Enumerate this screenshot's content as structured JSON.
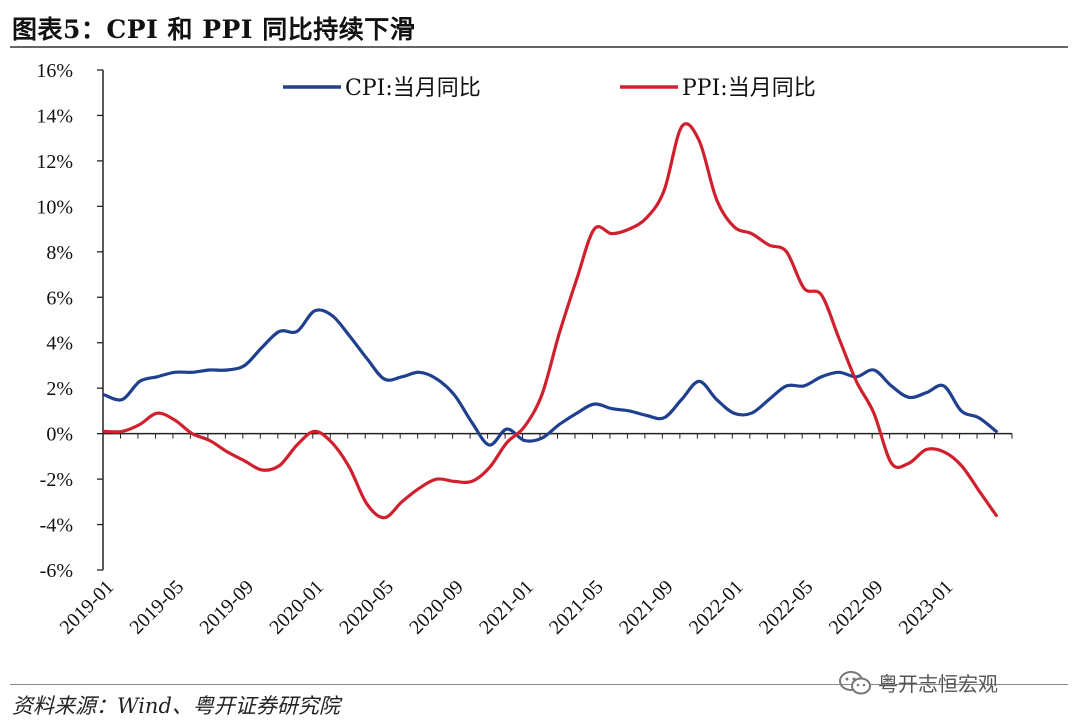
{
  "title": "图表5：CPI 和 PPI 同比持续下滑",
  "source": "资料来源：Wind、粤开证券研究院",
  "watermark": "粤开志恒宏观",
  "chart_data": {
    "type": "line",
    "ylim": [
      -6,
      16
    ],
    "y_ticks": [
      -6,
      -4,
      -2,
      0,
      2,
      4,
      6,
      8,
      10,
      12,
      14,
      16
    ],
    "y_tick_labels": [
      "-6%",
      "-4%",
      "-2%",
      "0%",
      "2%",
      "4%",
      "6%",
      "8%",
      "10%",
      "12%",
      "14%",
      "16%"
    ],
    "x_tick_labels": [
      "2019-01",
      "2019-05",
      "2019-09",
      "2020-01",
      "2020-05",
      "2020-09",
      "2021-01",
      "2021-05",
      "2021-09",
      "2022-01",
      "2022-05",
      "2022-09",
      "2023-01"
    ],
    "x": [
      "2019-01",
      "2019-02",
      "2019-03",
      "2019-04",
      "2019-05",
      "2019-06",
      "2019-07",
      "2019-08",
      "2019-09",
      "2019-10",
      "2019-11",
      "2019-12",
      "2020-01",
      "2020-02",
      "2020-03",
      "2020-04",
      "2020-05",
      "2020-06",
      "2020-07",
      "2020-08",
      "2020-09",
      "2020-10",
      "2020-11",
      "2020-12",
      "2021-01",
      "2021-02",
      "2021-03",
      "2021-04",
      "2021-05",
      "2021-06",
      "2021-07",
      "2021-08",
      "2021-09",
      "2021-10",
      "2021-11",
      "2021-12",
      "2022-01",
      "2022-02",
      "2022-03",
      "2022-04",
      "2022-05",
      "2022-06",
      "2022-07",
      "2022-08",
      "2022-09",
      "2022-10",
      "2022-11",
      "2022-12",
      "2023-01",
      "2023-02",
      "2023-03",
      "2023-04"
    ],
    "legend_position": "top",
    "series": [
      {
        "name": "CPI:当月同比",
        "color": "#1f3f8f",
        "values": [
          1.7,
          1.5,
          2.3,
          2.5,
          2.7,
          2.7,
          2.8,
          2.8,
          3.0,
          3.8,
          4.5,
          4.5,
          5.4,
          5.2,
          4.3,
          3.3,
          2.4,
          2.5,
          2.7,
          2.4,
          1.7,
          0.5,
          -0.5,
          0.2,
          -0.3,
          -0.2,
          0.4,
          0.9,
          1.3,
          1.1,
          1.0,
          0.8,
          0.7,
          1.5,
          2.3,
          1.5,
          0.9,
          0.9,
          1.5,
          2.1,
          2.1,
          2.5,
          2.7,
          2.5,
          2.8,
          2.1,
          1.6,
          1.8,
          2.1,
          1.0,
          0.7,
          0.1
        ]
      },
      {
        "name": "PPI:当月同比",
        "color": "#d0202e",
        "values": [
          0.1,
          0.1,
          0.4,
          0.9,
          0.6,
          0.0,
          -0.3,
          -0.8,
          -1.2,
          -1.6,
          -1.4,
          -0.5,
          0.1,
          -0.4,
          -1.5,
          -3.1,
          -3.7,
          -3.0,
          -2.4,
          -2.0,
          -2.1,
          -2.1,
          -1.5,
          -0.4,
          0.3,
          1.7,
          4.4,
          6.8,
          9.0,
          8.8,
          9.0,
          9.5,
          10.7,
          13.5,
          12.9,
          10.3,
          9.1,
          8.8,
          8.3,
          8.0,
          6.4,
          6.1,
          4.2,
          2.3,
          0.9,
          -1.3,
          -1.3,
          -0.7,
          -0.8,
          -1.4,
          -2.5,
          -3.6
        ]
      }
    ]
  }
}
